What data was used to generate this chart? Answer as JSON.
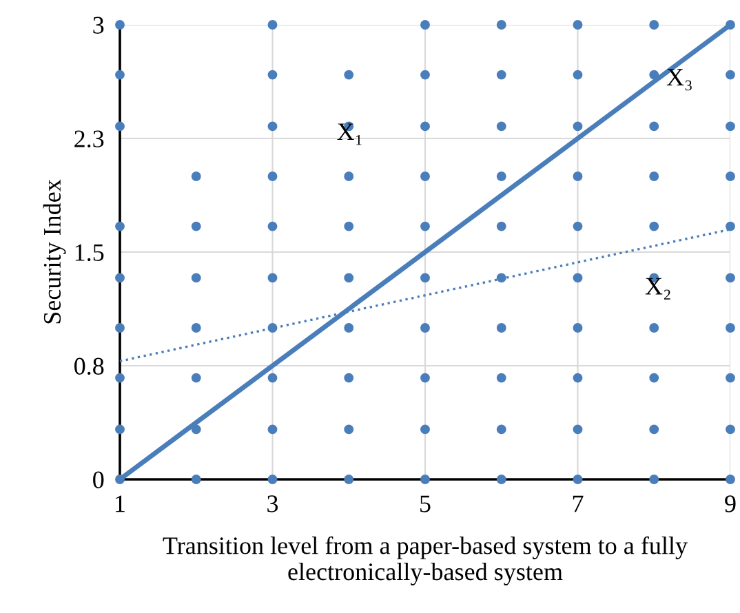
{
  "chart_data": {
    "type": "scatter",
    "xlabel": "Transition level from a paper-based system to a fully electronically-based system",
    "ylabel": "Security Index",
    "xlim": [
      1,
      9
    ],
    "xticks": [
      1,
      3,
      5,
      7,
      9
    ],
    "ylim": [
      0,
      3
    ],
    "yticks": [
      0,
      {
        "value": 0.75,
        "label": "0.8"
      },
      1.5,
      {
        "value": 2.25,
        "label": "2.3"
      },
      3
    ],
    "grid": true,
    "marker": "circle",
    "series": [
      {
        "color": "#4a7ebb",
        "x": [
          1,
          1,
          1,
          1,
          1,
          1,
          1,
          1,
          1,
          2,
          2,
          2,
          2,
          2,
          2,
          2,
          3,
          3,
          3,
          3,
          3,
          3,
          3,
          3,
          3,
          3,
          4,
          4,
          4,
          4,
          4,
          4,
          4,
          4,
          4,
          5,
          5,
          5,
          5,
          5,
          5,
          5,
          5,
          5,
          5,
          6,
          6,
          6,
          6,
          6,
          6,
          6,
          6,
          6,
          6,
          7,
          7,
          7,
          7,
          7,
          7,
          7,
          7,
          7,
          7,
          8,
          8,
          8,
          8,
          8,
          8,
          8,
          8,
          8,
          8,
          9,
          9,
          9,
          9,
          9,
          9,
          9,
          9,
          9,
          9
        ],
        "values": [
          0,
          0.33,
          0.67,
          1,
          1.33,
          1.67,
          2.33,
          2.67,
          3,
          0,
          0.33,
          0.67,
          1,
          1.33,
          1.67,
          2,
          0,
          0.33,
          0.67,
          1,
          1.33,
          1.67,
          2,
          2.33,
          2.67,
          3,
          0,
          0.33,
          0.67,
          1,
          1.33,
          1.67,
          2,
          2.33,
          2.67,
          0,
          0.33,
          0.67,
          1,
          1.33,
          1.67,
          2,
          2.33,
          2.67,
          3,
          0,
          0.33,
          0.67,
          1,
          1.33,
          1.67,
          2,
          2.33,
          2.67,
          3,
          0,
          0.33,
          0.67,
          1,
          1.33,
          1.67,
          2,
          2.33,
          2.67,
          3,
          0,
          0.33,
          0.67,
          1,
          1.33,
          1.67,
          2,
          2.33,
          2.67,
          3,
          0,
          0.33,
          0.67,
          1,
          1.33,
          1.67,
          2,
          2.33,
          2.67,
          3
        ]
      },
      {
        "type": "line",
        "color": "#4a7ebb",
        "line_style": "dotted",
        "marker": "none",
        "x": [
          1,
          9
        ],
        "values": [
          0.78,
          1.65
        ]
      },
      {
        "type": "line",
        "color": "#4a7ebb",
        "line_style": "solid",
        "marker": "none",
        "x": [
          1,
          9
        ],
        "values": [
          0,
          3
        ]
      }
    ],
    "annotations": [
      "X₁",
      "X₂",
      "X₃"
    ]
  }
}
